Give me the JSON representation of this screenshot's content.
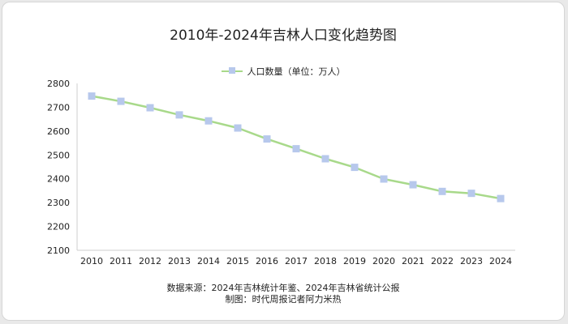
{
  "chart_data": {
    "type": "line",
    "title": "2010年-2024年吉林人口变化趋势图",
    "categories": [
      "2010",
      "2011",
      "2012",
      "2013",
      "2014",
      "2015",
      "2016",
      "2017",
      "2018",
      "2019",
      "2020",
      "2021",
      "2022",
      "2023",
      "2024"
    ],
    "series": [
      {
        "name": "人口数量（单位：万人）",
        "values": [
          2747,
          2725,
          2698,
          2668,
          2643,
          2613,
          2567,
          2526,
          2484,
          2448,
          2399,
          2375,
          2347,
          2339,
          2317
        ],
        "line_color": "#a8d98a",
        "marker_color": "#b7c8ec"
      }
    ],
    "ylim": [
      2100,
      2800
    ],
    "yticks": [
      2100,
      2200,
      2300,
      2400,
      2500,
      2600,
      2700,
      2800
    ],
    "grid": false,
    "legend_position": "top"
  },
  "footer": {
    "source": "数据来源：2024年吉林统计年鉴、2024年吉林省统计公报",
    "credit": "制图：时代周报记者阿力米热"
  }
}
